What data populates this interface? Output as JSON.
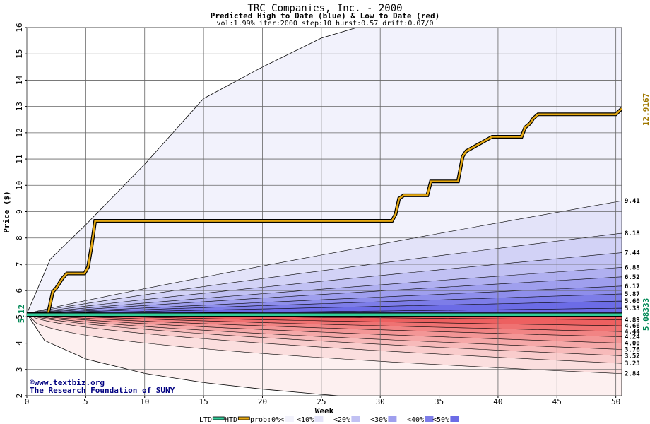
{
  "chart_data": {
    "type": "area",
    "title": "TRC Companies, Inc. - 2000",
    "subtitle": "Predicted High to Date (blue) &  Low to Date (red)",
    "params": "vol:1.99% iter:2000 step:10 hurst:0.57 drift:0.07/0",
    "xlabel": "Week",
    "ylabel": "Price ($)",
    "xlim": [
      0,
      50.5
    ],
    "ylim": [
      2,
      16
    ],
    "x_ticks": [
      "0",
      "5",
      "10",
      "15",
      "20",
      "25",
      "30",
      "35",
      "40",
      "45",
      "50"
    ],
    "y_ticks": [
      "2",
      "3",
      "4",
      "5",
      "6",
      "7",
      "8",
      "9",
      "10",
      "11",
      "12",
      "13",
      "14",
      "15",
      "16"
    ],
    "grid": true,
    "start_price": "5.12",
    "right_labels": {
      "high_value": "12.9167",
      "low_value": "5.08333"
    },
    "upper_band_end_values": [
      "9.41",
      "8.18",
      "7.44",
      "6.88",
      "6.52",
      "6.17",
      "5.87",
      "5.60",
      "5.33"
    ],
    "lower_band_end_values": [
      "4.89",
      "4.66",
      "4.44",
      "4.24",
      "4.00",
      "3.76",
      "3.52",
      "3.23",
      "2.84"
    ],
    "upper_envelope": {
      "x": [
        0,
        2,
        5,
        10,
        15,
        20,
        25,
        28
      ],
      "y": [
        5.12,
        7.2,
        8.5,
        10.8,
        13.3,
        14.5,
        15.6,
        16
      ]
    },
    "lower_envelope": {
      "x": [
        0,
        1.5,
        5,
        10,
        15,
        20,
        25,
        26.5
      ],
      "y": [
        5.12,
        4.1,
        3.4,
        2.85,
        2.5,
        2.25,
        2.05,
        2
      ]
    },
    "upper_bands": [
      {
        "end": 9.41,
        "mid": 7.35
      },
      {
        "end": 8.18,
        "mid": 6.75
      },
      {
        "end": 7.44,
        "mid": 6.35
      },
      {
        "end": 6.88,
        "mid": 6.05
      },
      {
        "end": 6.52,
        "mid": 5.85
      },
      {
        "end": 6.17,
        "mid": 5.65
      },
      {
        "end": 5.87,
        "mid": 5.5
      },
      {
        "end": 5.6,
        "mid": 5.35
      },
      {
        "end": 5.33,
        "mid": 5.2
      }
    ],
    "lower_bands": [
      {
        "end": 4.89,
        "mid": 4.98
      },
      {
        "end": 4.66,
        "mid": 4.85
      },
      {
        "end": 4.44,
        "mid": 4.72
      },
      {
        "end": 4.24,
        "mid": 4.58
      },
      {
        "end": 4.0,
        "mid": 4.42
      },
      {
        "end": 3.76,
        "mid": 4.25
      },
      {
        "end": 3.52,
        "mid": 4.08
      },
      {
        "end": 3.23,
        "mid": 3.85
      },
      {
        "end": 2.84,
        "mid": 3.45
      }
    ],
    "series": [
      {
        "name": "HTD",
        "x": [
          0,
          1.8,
          2.2,
          2.5,
          3,
          3.4,
          4.9,
          5.2,
          5.5,
          5.8,
          31,
          31.3,
          31.6,
          32,
          34,
          34.3,
          36.6,
          37,
          37.3,
          39.5,
          42,
          42.3,
          42.7,
          43,
          43.4,
          50,
          50.5
        ],
        "y": [
          5.12,
          5.12,
          5.95,
          6.1,
          6.45,
          6.65,
          6.65,
          6.9,
          7.7,
          8.65,
          8.65,
          8.9,
          9.5,
          9.62,
          9.62,
          10.15,
          10.15,
          11.1,
          11.3,
          11.85,
          11.85,
          12.2,
          12.35,
          12.55,
          12.7,
          12.7,
          12.92
        ]
      },
      {
        "name": "LTD",
        "x": [
          0,
          50.5
        ],
        "y": [
          5.083,
          5.083
        ]
      }
    ],
    "legend": [
      "LTD",
      "HTD",
      "prob:0%<",
      "<10%",
      "<20%",
      "<30%",
      "<40%",
      "<50%"
    ],
    "colors": {
      "upper_bands": [
        "#f2f2fc",
        "#e3e3f9",
        "#d2d2f6",
        "#c1c1f3",
        "#b0b0f0",
        "#9f9fee",
        "#8e8eeb",
        "#7d7de8",
        "#6c6ce6"
      ],
      "lower_bands": [
        "#fdf0f0",
        "#fbdede",
        "#f9cccc",
        "#f7baba",
        "#f5a8a8",
        "#f39696",
        "#f18484",
        "#ef7272",
        "#ed6060"
      ],
      "htd": "#e5a811",
      "ltd": "#33cc99",
      "right_high_label": "#a07800",
      "right_low_label": "#008855"
    }
  },
  "watermark": {
    "line1": "©www.textbiz.org",
    "line2": "The Research Foundation of SUNY"
  }
}
